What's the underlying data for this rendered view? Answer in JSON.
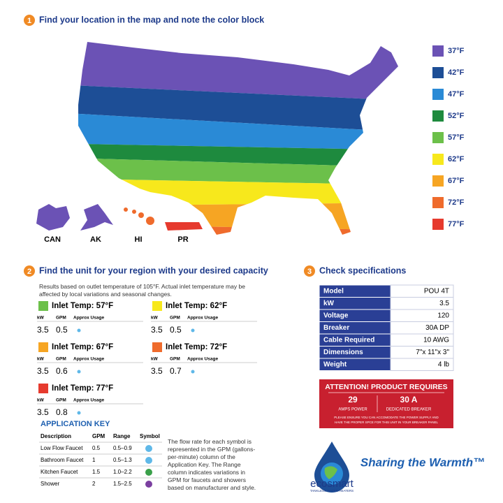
{
  "step1": {
    "number": "1",
    "title": "Find your location in the map and note the color block"
  },
  "legend": [
    {
      "label": "37°F",
      "color": "#6b52b5"
    },
    {
      "label": "42°F",
      "color": "#1d4e96"
    },
    {
      "label": "47°F",
      "color": "#2a8ad6"
    },
    {
      "label": "52°F",
      "color": "#1e8a3e"
    },
    {
      "label": "57°F",
      "color": "#6cc04a"
    },
    {
      "label": "62°F",
      "color": "#f7e81c"
    },
    {
      "label": "67°F",
      "color": "#f6a523"
    },
    {
      "label": "72°F",
      "color": "#ef6b2c"
    },
    {
      "label": "77°F",
      "color": "#e63a2e"
    }
  ],
  "regions": [
    {
      "label": "CAN",
      "color": "#6b52b5"
    },
    {
      "label": "AK",
      "color": "#6b52b5"
    },
    {
      "label": "HI",
      "color": "#ef6b2c"
    },
    {
      "label": "PR",
      "color": "#e63a2e"
    }
  ],
  "step2": {
    "number": "2",
    "title": "Find the unit for your region with your desired capacity",
    "note": "Results based on outlet temperature of 105°F. Actual inlet temperature may be affected by local variations and seasonal changes."
  },
  "inlet_headers": [
    "kW",
    "GPM",
    "Approx Usage"
  ],
  "inlets": [
    {
      "title": "Inlet Temp: 57°F",
      "color": "#6cc04a",
      "kw": "3.5",
      "gpm": "0.5"
    },
    {
      "title": "Inlet Temp: 62°F",
      "color": "#f7e81c",
      "kw": "3.5",
      "gpm": "0.5"
    },
    {
      "title": "Inlet Temp: 67°F",
      "color": "#f6a523",
      "kw": "3.5",
      "gpm": "0.6"
    },
    {
      "title": "Inlet Temp: 72°F",
      "color": "#ef6b2c",
      "kw": "3.5",
      "gpm": "0.7"
    },
    {
      "title": "Inlet Temp: 77°F",
      "color": "#e63a2e",
      "kw": "3.5",
      "gpm": "0.8"
    }
  ],
  "application_key": {
    "title": "APPLICATION KEY",
    "headers": [
      "Description",
      "GPM",
      "Range",
      "Symbol"
    ],
    "rows": [
      [
        "Low Flow Faucet",
        "0.5",
        "0.5–0.9"
      ],
      [
        "Bathroom Faucet",
        "1",
        "0.5–1.3"
      ],
      [
        "Kitchen Faucet",
        "1.5",
        "1.0–2.2"
      ],
      [
        "Shower",
        "2",
        "1.5–2.5"
      ]
    ],
    "note": "The flow rate for each symbol is represented in the GPM (gallons-per-minute) column of the Application Key. The Range column indicates variations in GPM for faucets and showers based on manufacturer and style."
  },
  "step3": {
    "number": "3",
    "title": "Check specifications"
  },
  "specs": [
    [
      "Model",
      "POU 4T"
    ],
    [
      "kW",
      "3.5"
    ],
    [
      "Voltage",
      "120"
    ],
    [
      "Breaker",
      "30A DP"
    ],
    [
      "Cable Required",
      "10 AWG"
    ],
    [
      "Dimensions",
      "7\"x 11\"x 3\""
    ],
    [
      "Weight",
      "4 lb"
    ]
  ],
  "attention": {
    "title": "ATTENTION! PRODUCT REQUIRES",
    "items": [
      {
        "value": "29",
        "label": "AMPS POWER"
      },
      {
        "value": "30 A",
        "label": "DEDICATED BREAKER"
      }
    ],
    "note": [
      "PLEASE ENSURE YOU CAN ACCOMODATE THE POWER SUPPLY AND",
      "HAVE THE PROPER SPCE FOR THIS UNIT IN YOUR BREAKER PANEL"
    ]
  },
  "brand": {
    "name": "ecosmart",
    "tagline": "TANKLESS WATER HEATERS",
    "slogan": "Sharing the Warmth™"
  }
}
